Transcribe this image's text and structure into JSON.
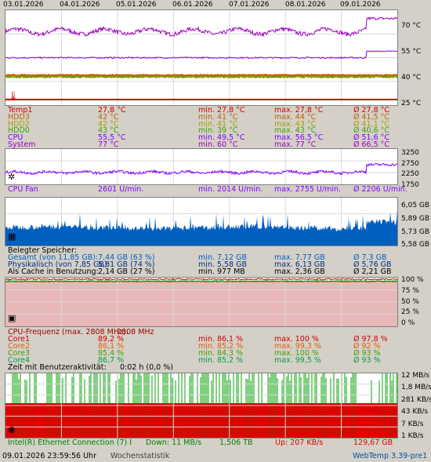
{
  "dates": [
    "03.01.2026",
    "04.01.2026",
    "05.01.2026",
    "06.01.2026",
    "07.01.2026",
    "08.01.2026",
    "09.01.2026"
  ],
  "temp_axis": [
    "70 °C",
    "55 °C",
    "40 °C",
    "25 °C"
  ],
  "fan_axis": [
    "3250",
    "2750",
    "2250",
    "1750"
  ],
  "mem_axis": [
    "6,05 GB",
    "5,89 GB",
    "5,73 GB",
    "5,58 GB"
  ],
  "cpu_axis": [
    "100 %",
    "75 %",
    "50 %",
    "25 %",
    "0 %"
  ],
  "net_axis": [
    "12 MB/s",
    "1,8 MB/s",
    "281 KB/s",
    "43 KB/s",
    "7 KB/s",
    "1 KB/s"
  ],
  "colors": {
    "temp1": "#cc0000",
    "hdd3": "#c06000",
    "hdd2": "#a0a000",
    "hdd0": "#40a000",
    "cpu": "#8000ff",
    "system": "#a000c0",
    "fan": "#8000ff",
    "mem": "#0060c0",
    "net_down": "#00a000",
    "net_up": "#e00000"
  },
  "temps": [
    {
      "name": "Temp1",
      "cur": "27,8 °C",
      "min": "min. 27,8 °C",
      "max": "max. 27,8 °C",
      "avg": "Ø 27,8 °C",
      "color": "#cc0000"
    },
    {
      "name": "HDD3",
      "cur": "42 °C",
      "min": "min. 41 °C",
      "max": "max. 44 °C",
      "avg": "Ø 41,5 °C",
      "color": "#c06000"
    },
    {
      "name": "HDD2",
      "cur": "42 °C",
      "min": "min. 41 °C",
      "max": "max. 43 °C",
      "avg": "Ø 41,1 °C",
      "color": "#a0a000"
    },
    {
      "name": "HDD0",
      "cur": "43 °C",
      "min": "min. 39 °C",
      "max": "max. 43 °C",
      "avg": "Ø 40,6 °C",
      "color": "#40a000"
    },
    {
      "name": "CPU",
      "cur": "55,5 °C",
      "min": "min. 49,5 °C",
      "max": "max. 56,5 °C",
      "avg": "Ø 51,6 °C",
      "color": "#8000ff"
    },
    {
      "name": "System",
      "cur": "77 °C",
      "min": "min. 60 °C",
      "max": "max. 77 °C",
      "avg": "Ø 66,5 °C",
      "color": "#a000c0"
    }
  ],
  "fan": {
    "name": "CPU Fan",
    "cur": "2601 U/min.",
    "min": "min. 2014 U/min.",
    "max": "max. 2755 U/min.",
    "avg": "Ø 2206 U/min."
  },
  "memory": {
    "title": "Belegter Speicher:",
    "rows": [
      {
        "name": "Gesamt (von 11,85 GB):",
        "cur": "7,44 GB (63 %)",
        "min": "min. 7,12 GB",
        "max": "max. 7,77 GB",
        "avg": "Ø 7,3 GB",
        "color": "#0060c0"
      },
      {
        "name": "Physikalisch (von 7,85 GB):",
        "cur": "5,81 GB (74 %)",
        "min": "min. 5,58 GB",
        "max": "max. 6,13 GB",
        "avg": "Ø 5,76 GB",
        "color": "#003080"
      },
      {
        "name": "Als Cache in Benutzung:",
        "cur": "2,14 GB (27 %)",
        "min": "min. 977 MB",
        "max": "max. 2,36 GB",
        "avg": "Ø 2,21 GB",
        "color": "#000000"
      }
    ]
  },
  "cpu": {
    "freq_label": "CPU-Frequenz (max. 2808 MHz):",
    "freq_value": "2808 MHz",
    "cores": [
      {
        "name": "Core1",
        "cur": "89,2 %",
        "min": "min. 86,1 %",
        "max": "max. 100 %",
        "avg": "Ø 97,8 %",
        "color": "#cc0000"
      },
      {
        "name": "Core2",
        "cur": "86,1 %",
        "min": "min. 85,2 %",
        "max": "max. 99,3 %",
        "avg": "Ø 92 %",
        "color": "#e06000"
      },
      {
        "name": "Core3",
        "cur": "85,4 %",
        "min": "min. 84,3 %",
        "max": "max. 100 %",
        "avg": "Ø 93 %",
        "color": "#40a000"
      },
      {
        "name": "Core4",
        "cur": "86,7 %",
        "min": "min. 85,2 %",
        "max": "max. 99,5 %",
        "avg": "Ø 93 %",
        "color": "#00a040"
      }
    ],
    "activity_label": "Zeit mit Benutzeraktivität:",
    "activity_value": "0:02 h (0,0 %)"
  },
  "network": {
    "name": "Intel(R) Ethernet Connection (7) I",
    "down": "Down: 11 MB/s",
    "down_total": "1,506 TB",
    "up": "Up: 207 KB/s",
    "up_total": "129,67 GB"
  },
  "footer": {
    "timestamp": "09.01.2026 23:59:56 Uhr",
    "mode": "Wochenstatistik",
    "version": "WebTemp 3.39-pre1"
  }
}
